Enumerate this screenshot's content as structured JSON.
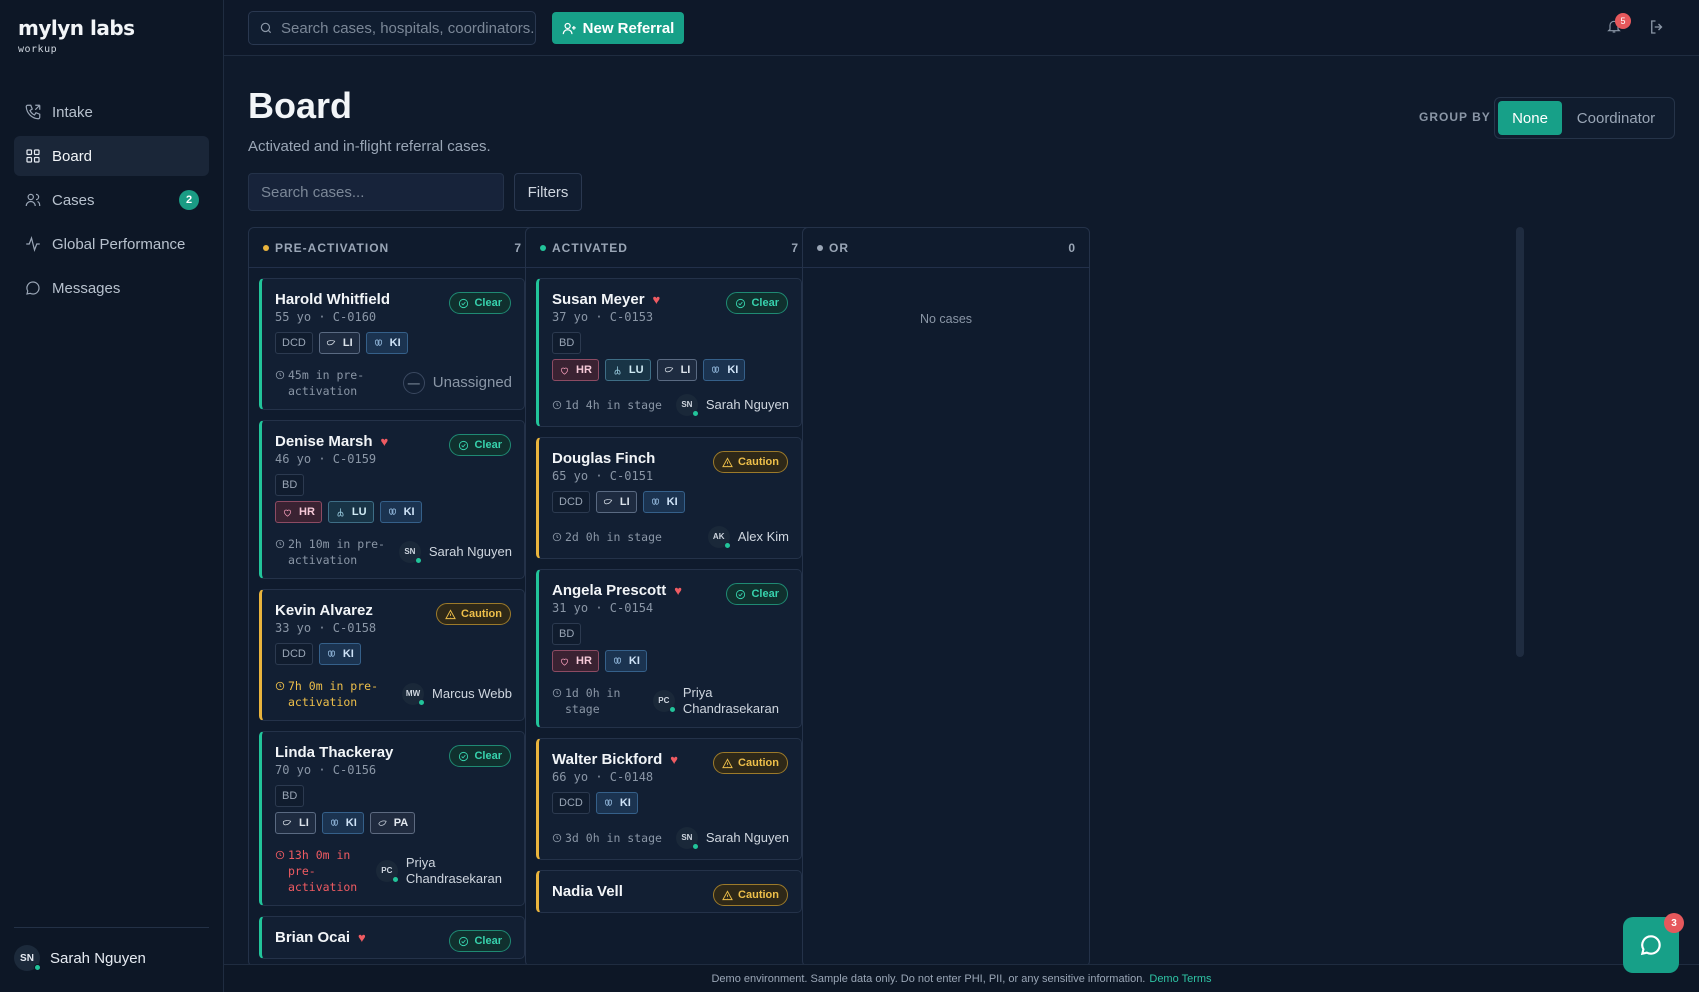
{
  "app": {
    "logo_word": "mylyn labs",
    "logo_sub": "workup"
  },
  "sidebar": {
    "items": [
      {
        "label": "Intake",
        "icon": "phone-icon"
      },
      {
        "label": "Board",
        "icon": "grid-icon"
      },
      {
        "label": "Cases",
        "icon": "users-icon",
        "badge": "2"
      },
      {
        "label": "Global Performance",
        "icon": "activity-icon"
      },
      {
        "label": "Messages",
        "icon": "chat-icon"
      }
    ],
    "user": {
      "initials": "SN",
      "name": "Sarah Nguyen"
    }
  },
  "topbar": {
    "search_placeholder": "Search cases, hospitals, coordinators...",
    "new_referral": "New Referral",
    "notif_count": "5"
  },
  "page": {
    "title": "Board",
    "subtitle": "Activated and in-flight referral cases.",
    "group_by_label": "GROUP BY",
    "group_by_options": [
      "None",
      "Coordinator"
    ],
    "group_by_selected": "None",
    "search_placeholder": "Search cases...",
    "filters_label": "Filters"
  },
  "colors": {
    "clear": "#22c49a",
    "caution": "#e9b43d",
    "accent": "#17a088"
  },
  "columns": [
    {
      "name": "PRE-ACTIVATION",
      "count": "7",
      "dot": "#e9b43d",
      "cards": [
        {
          "name": "Harold Whitfield",
          "heart": false,
          "meta": "55 yo · C-0160",
          "status": "Clear",
          "dtype": "DCD",
          "organs": [
            "LI",
            "KI"
          ],
          "time": "45m in pre-activation",
          "time_level": "normal",
          "assignee": "Unassigned",
          "initials": "—"
        },
        {
          "name": "Denise Marsh",
          "heart": true,
          "meta": "46 yo · C-0159",
          "status": "Clear",
          "dtype": "BD",
          "organs": [
            "HR",
            "LU",
            "KI"
          ],
          "time": "2h 10m in pre-activation",
          "time_level": "normal",
          "assignee": "Sarah Nguyen",
          "initials": "SN"
        },
        {
          "name": "Kevin Alvarez",
          "heart": false,
          "meta": "33 yo · C-0158",
          "status": "Caution",
          "dtype": "DCD",
          "organs": [
            "KI"
          ],
          "time": "7h 0m in pre-activation",
          "time_level": "warn",
          "assignee": "Marcus Webb",
          "initials": "MW"
        },
        {
          "name": "Linda Thackeray",
          "heart": false,
          "meta": "70 yo · C-0156",
          "status": "Clear",
          "dtype": "BD",
          "organs": [
            "LI",
            "KI",
            "PA"
          ],
          "time": "13h 0m in pre-activation",
          "time_level": "danger",
          "assignee": "Priya Chandrasekaran",
          "initials": "PC"
        },
        {
          "name": "Brian Ocai",
          "heart": true,
          "meta": "",
          "status": "Clear",
          "dtype": "",
          "organs": [],
          "time": "",
          "time_level": "normal",
          "assignee": "",
          "initials": ""
        }
      ]
    },
    {
      "name": "ACTIVATED",
      "count": "7",
      "dot": "#22c49a",
      "cards": [
        {
          "name": "Susan Meyer",
          "heart": true,
          "meta": "37 yo · C-0153",
          "status": "Clear",
          "dtype": "BD",
          "organs": [
            "HR",
            "LU",
            "LI",
            "KI"
          ],
          "time": "1d 4h in stage",
          "time_level": "normal",
          "assignee": "Sarah Nguyen",
          "initials": "SN"
        },
        {
          "name": "Douglas Finch",
          "heart": false,
          "meta": "65 yo · C-0151",
          "status": "Caution",
          "dtype": "DCD",
          "organs": [
            "LI",
            "KI"
          ],
          "time": "2d 0h in stage",
          "time_level": "normal",
          "assignee": "Alex Kim",
          "initials": "AK"
        },
        {
          "name": "Angela Prescott",
          "heart": true,
          "meta": "31 yo · C-0154",
          "status": "Clear",
          "dtype": "BD",
          "organs": [
            "HR",
            "KI"
          ],
          "time": "1d 0h in stage",
          "time_level": "normal",
          "assignee": "Priya Chandrasekaran",
          "initials": "PC"
        },
        {
          "name": "Walter Bickford",
          "heart": true,
          "meta": "66 yo · C-0148",
          "status": "Caution",
          "dtype": "DCD",
          "organs": [
            "KI"
          ],
          "time": "3d 0h in stage",
          "time_level": "normal",
          "assignee": "Sarah Nguyen",
          "initials": "SN"
        },
        {
          "name": "Nadia Vell",
          "heart": false,
          "meta": "",
          "status": "Caution",
          "dtype": "",
          "organs": [],
          "time": "",
          "time_level": "normal",
          "assignee": "",
          "initials": ""
        }
      ]
    },
    {
      "name": "OR",
      "count": "0",
      "dot": "#9aa6b6",
      "cards": [],
      "empty_text": "No cases"
    }
  ],
  "footer": {
    "text": "Demo environment. Sample data only. Do not enter PHI, PII, or any sensitive information.",
    "link": "Demo Terms"
  },
  "chat": {
    "badge": "3"
  }
}
